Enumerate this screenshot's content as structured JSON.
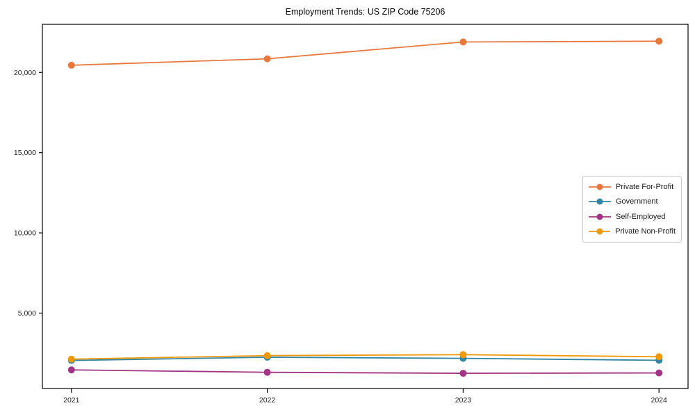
{
  "chart_data": {
    "type": "line",
    "title": "Employment Trends: US ZIP Code 75206",
    "xlabel": "",
    "ylabel": "",
    "categories": [
      "2021",
      "2022",
      "2023",
      "2024"
    ],
    "series": [
      {
        "name": "Private For-Profit",
        "color": "#E8773C",
        "values": [
          20450,
          20850,
          21900,
          21950
        ]
      },
      {
        "name": "Government",
        "color": "#3186A5",
        "values": [
          2050,
          2250,
          2180,
          2060
        ]
      },
      {
        "name": "Self-Employed",
        "color": "#A13484",
        "values": [
          1460,
          1310,
          1250,
          1270
        ]
      },
      {
        "name": "Private Non-Profit",
        "color": "#F0980B",
        "values": [
          2130,
          2350,
          2410,
          2280
        ]
      }
    ],
    "ylim": [
      300,
      23000
    ],
    "yticks": [
      {
        "value": 5000,
        "label": "5,000"
      },
      {
        "value": 10000,
        "label": "10,000"
      },
      {
        "value": 15000,
        "label": "15,000"
      },
      {
        "value": 20000,
        "label": "20,000"
      }
    ],
    "grid": false,
    "legend": {
      "position": "center-right"
    },
    "axis_color": "#000000",
    "tick_label_color": "#1a1a1a"
  }
}
